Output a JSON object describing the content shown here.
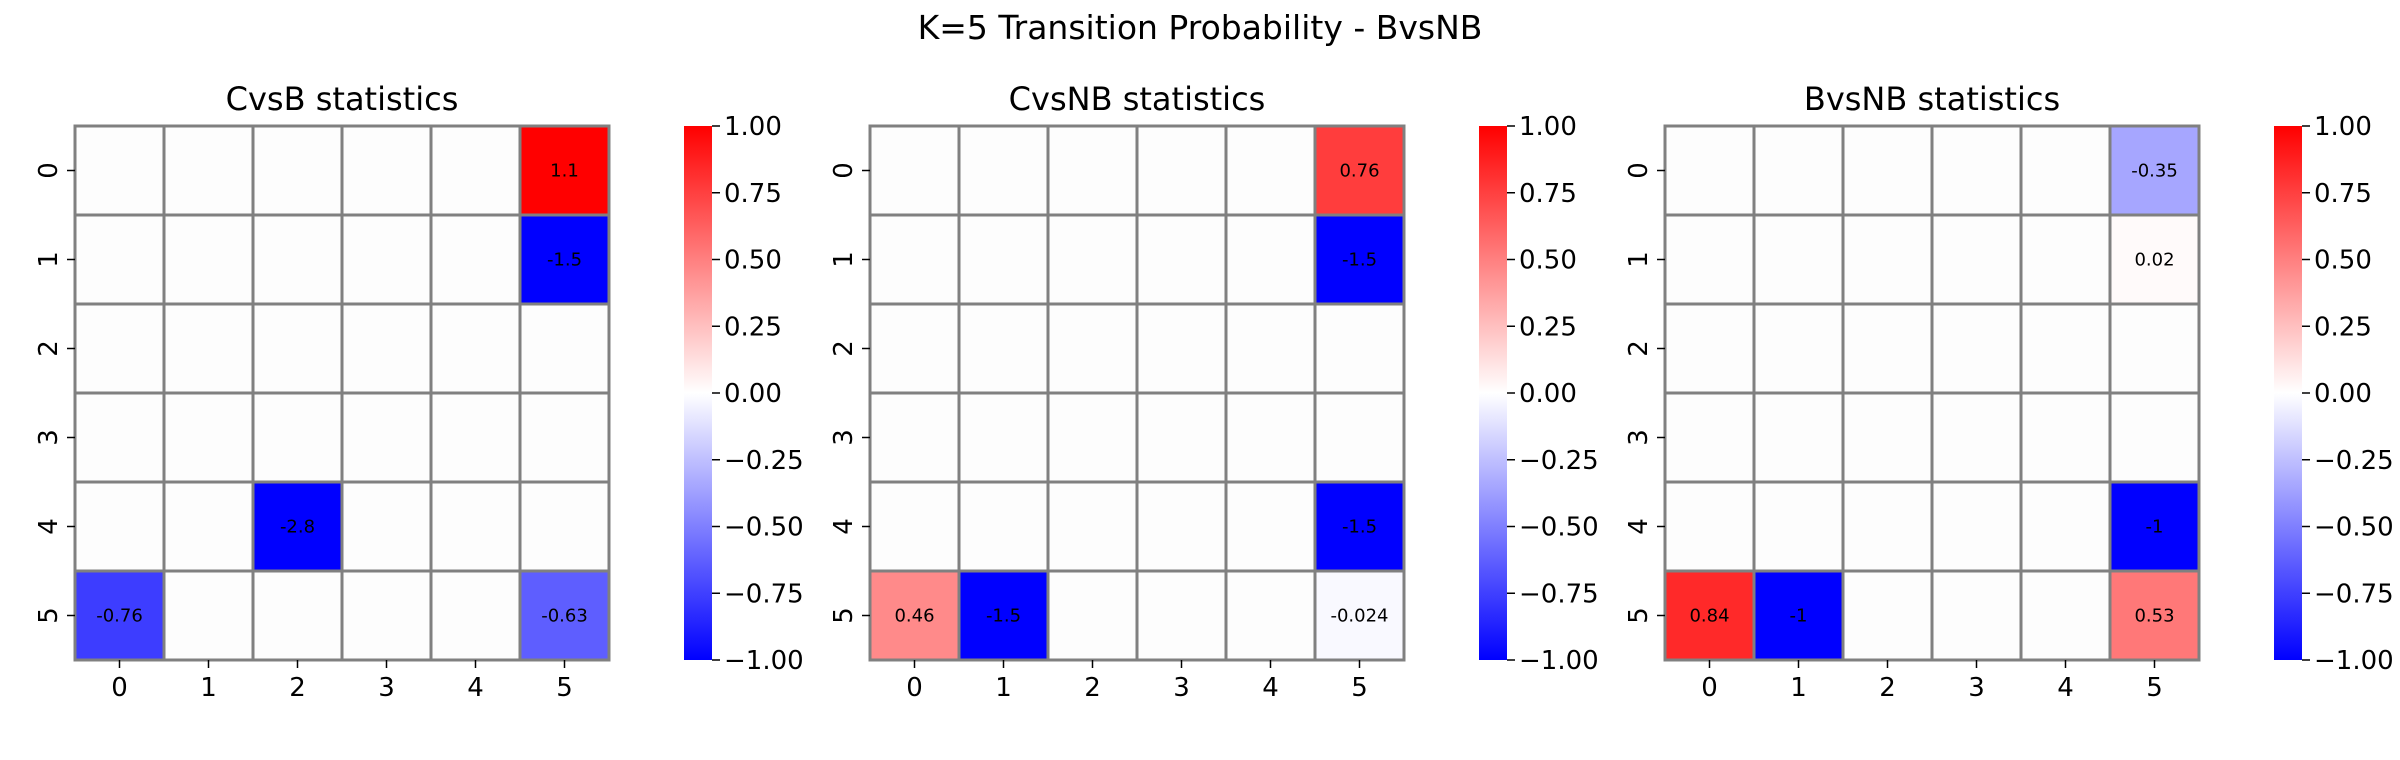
{
  "suptitle": "K=5 Transition Probability - BvsNB",
  "chart_data": [
    {
      "type": "heatmap",
      "title": "CvsB statistics",
      "xlabel": "",
      "ylabel": "",
      "x_ticks": [
        "0",
        "1",
        "2",
        "3",
        "4",
        "5"
      ],
      "y_ticks": [
        "0",
        "1",
        "2",
        "3",
        "4",
        "5"
      ],
      "vmin": -1,
      "vmax": 1,
      "colormap": "bwr",
      "colorbar_ticks": [
        "1.00",
        "0.75",
        "0.50",
        "0.25",
        "0.00",
        "−0.25",
        "−0.50",
        "−0.75",
        "−1.00"
      ],
      "cells": [
        {
          "row": 0,
          "col": 5,
          "value": 1.1,
          "label": "1.1"
        },
        {
          "row": 1,
          "col": 5,
          "value": -1.5,
          "label": "-1.5"
        },
        {
          "row": 4,
          "col": 2,
          "value": -2.8,
          "label": "-2.8"
        },
        {
          "row": 5,
          "col": 0,
          "value": -0.76,
          "label": "-0.76"
        },
        {
          "row": 5,
          "col": 5,
          "value": -0.63,
          "label": "-0.63"
        }
      ]
    },
    {
      "type": "heatmap",
      "title": "CvsNB statistics",
      "xlabel": "",
      "ylabel": "",
      "x_ticks": [
        "0",
        "1",
        "2",
        "3",
        "4",
        "5"
      ],
      "y_ticks": [
        "0",
        "1",
        "2",
        "3",
        "4",
        "5"
      ],
      "vmin": -1,
      "vmax": 1,
      "colormap": "bwr",
      "colorbar_ticks": [
        "1.00",
        "0.75",
        "0.50",
        "0.25",
        "0.00",
        "−0.25",
        "−0.50",
        "−0.75",
        "−1.00"
      ],
      "cells": [
        {
          "row": 0,
          "col": 5,
          "value": 0.76,
          "label": "0.76"
        },
        {
          "row": 1,
          "col": 5,
          "value": -1.5,
          "label": "-1.5"
        },
        {
          "row": 4,
          "col": 5,
          "value": -1.5,
          "label": "-1.5"
        },
        {
          "row": 5,
          "col": 0,
          "value": 0.46,
          "label": "0.46"
        },
        {
          "row": 5,
          "col": 1,
          "value": -1.5,
          "label": "-1.5"
        },
        {
          "row": 5,
          "col": 5,
          "value": -0.024,
          "label": "-0.024"
        }
      ]
    },
    {
      "type": "heatmap",
      "title": "BvsNB statistics",
      "xlabel": "",
      "ylabel": "",
      "x_ticks": [
        "0",
        "1",
        "2",
        "3",
        "4",
        "5"
      ],
      "y_ticks": [
        "0",
        "1",
        "2",
        "3",
        "4",
        "5"
      ],
      "vmin": -1,
      "vmax": 1,
      "colormap": "bwr",
      "colorbar_ticks": [
        "1.00",
        "0.75",
        "0.50",
        "0.25",
        "0.00",
        "−0.25",
        "−0.50",
        "−0.75",
        "−1.00"
      ],
      "cells": [
        {
          "row": 0,
          "col": 5,
          "value": -0.35,
          "label": "-0.35"
        },
        {
          "row": 1,
          "col": 5,
          "value": 0.02,
          "label": "0.02"
        },
        {
          "row": 4,
          "col": 5,
          "value": -1,
          "label": "-1"
        },
        {
          "row": 5,
          "col": 0,
          "value": 0.84,
          "label": "0.84"
        },
        {
          "row": 5,
          "col": 1,
          "value": -1,
          "label": "-1"
        },
        {
          "row": 5,
          "col": 5,
          "value": 0.53,
          "label": "0.53"
        }
      ]
    }
  ],
  "colors": {
    "grid_line": "#808080",
    "empty_cell": "#fdfdfd",
    "positive": "#ff0000",
    "negative": "#0000ff",
    "neutral": "#ffffff"
  }
}
